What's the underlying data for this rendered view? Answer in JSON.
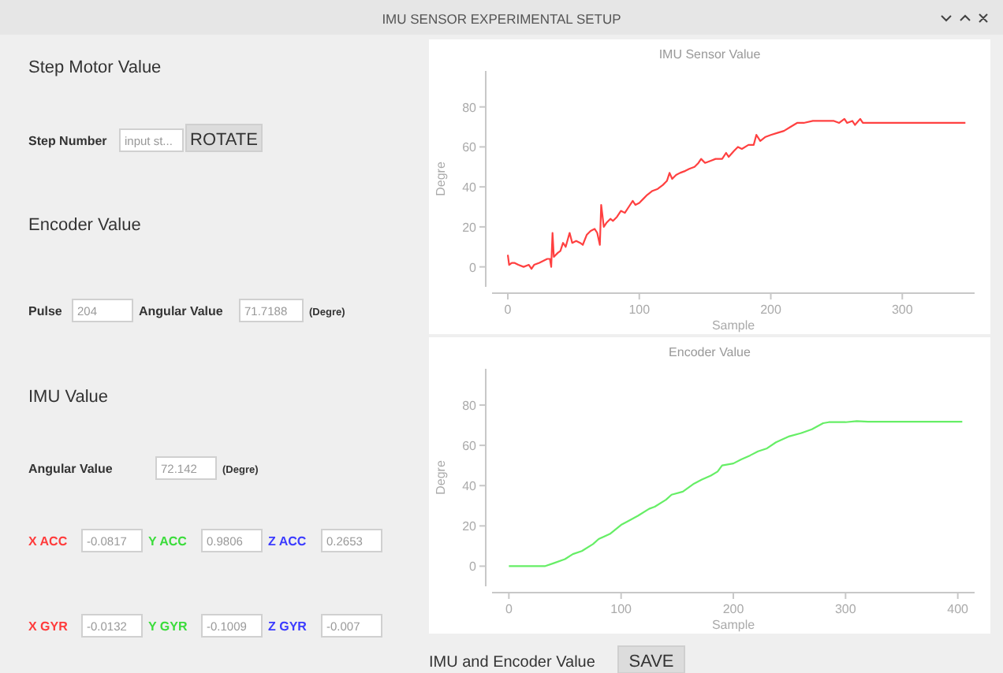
{
  "chart_data": [
    {
      "type": "other",
      "title": "IMU SENSOR EXPERIMENTAL SETUP",
      "annotations": [
        "Step Motor Value",
        "Step Number",
        "input st...",
        "ROTATE",
        "Encoder Value",
        "Pulse",
        "204",
        "Angular Value",
        "71.7188",
        "(Degre)",
        "IMU Value",
        "Angular Value",
        "72.142",
        "(Degre)",
        "X ACC",
        "-0.0817",
        "Y ACC",
        "0.9806",
        "Z ACC",
        "0.2653",
        "X GYR",
        "-0.0132",
        "Y GYR",
        "-0.1009",
        "Z GYR",
        "-0.007",
        "IMU and Encoder Value",
        "SAVE"
      ]
    },
    {
      "type": "line",
      "title": "IMU Sensor Value",
      "xlabel": "Sample",
      "ylabel": "Degre",
      "xlim": [
        -12,
        355
      ],
      "ylim": [
        -10,
        98
      ],
      "xticks": [
        0,
        100,
        200,
        300
      ],
      "yticks": [
        0,
        20,
        40,
        60,
        80
      ],
      "series": [
        {
          "color": "#ff4040",
          "x": [
            0,
            1,
            3,
            5,
            8,
            12,
            16,
            18,
            20,
            24,
            27,
            30,
            32,
            33,
            34,
            35,
            38,
            40,
            42,
            44,
            47,
            49,
            52,
            55,
            57,
            60,
            63,
            66,
            68,
            70,
            71,
            73,
            75,
            78,
            80,
            83,
            86,
            89,
            92,
            95,
            97,
            100,
            103,
            106,
            110,
            114,
            118,
            121,
            123,
            125,
            128,
            131,
            135,
            138,
            142,
            145,
            147,
            150,
            154,
            158,
            163,
            166,
            168,
            172,
            175,
            178,
            183,
            187,
            189,
            192,
            196,
            200,
            205,
            210,
            215,
            220,
            225,
            232,
            240,
            248,
            252,
            256,
            258,
            262,
            264,
            268,
            270,
            275,
            300,
            348
          ],
          "values": [
            6,
            1,
            2,
            2,
            1,
            0,
            1,
            -1,
            1,
            2,
            3,
            4,
            4,
            0,
            17,
            5,
            7,
            8,
            12,
            10,
            17,
            12,
            13,
            12,
            11,
            16,
            18,
            19,
            17,
            11,
            31,
            20,
            22,
            24,
            23,
            25,
            28,
            27,
            30,
            33,
            31,
            32,
            34,
            36,
            38,
            39,
            41,
            43,
            47,
            44,
            46,
            47,
            48,
            49,
            50,
            52,
            54,
            52,
            53,
            54,
            54,
            57,
            55,
            58,
            60,
            59,
            61,
            61,
            66,
            63,
            65,
            66,
            67,
            68,
            70,
            72,
            72,
            73,
            73,
            73,
            72,
            74,
            72,
            73,
            71,
            74,
            72,
            72,
            72,
            72
          ]
        }
      ]
    },
    {
      "type": "line",
      "title": "Encoder Value",
      "xlabel": "Sample",
      "ylabel": "Degre",
      "xlim": [
        -15,
        415
      ],
      "ylim": [
        -10,
        98
      ],
      "xticks": [
        0,
        100,
        200,
        300,
        400
      ],
      "yticks": [
        0,
        20,
        40,
        60,
        80
      ],
      "series": [
        {
          "color": "#66ee66",
          "x": [
            0,
            25,
            32,
            40,
            50,
            57,
            65,
            75,
            80,
            90,
            100,
            105,
            115,
            125,
            130,
            140,
            145,
            155,
            165,
            172,
            180,
            186,
            190,
            200,
            207,
            215,
            222,
            230,
            238,
            250,
            260,
            270,
            280,
            285,
            300,
            310,
            320,
            404
          ],
          "values": [
            0,
            0,
            0,
            1.5,
            3.5,
            6,
            7.5,
            11,
            13.5,
            16,
            20.5,
            22,
            25,
            28.5,
            29.5,
            33,
            35.5,
            37,
            41,
            43,
            45,
            47,
            50,
            51,
            53,
            55,
            57,
            58.5,
            61.5,
            64.5,
            66,
            68,
            71,
            71.5,
            71.5,
            72,
            71.7,
            71.7
          ]
        }
      ]
    }
  ]
}
